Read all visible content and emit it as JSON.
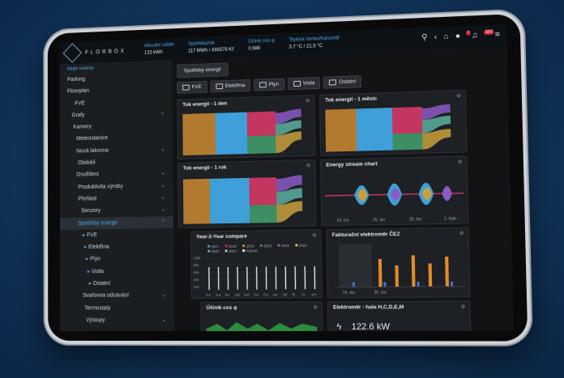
{
  "app": {
    "logo_text": "FLORBOX"
  },
  "header": {
    "metrics": [
      {
        "label": "Aktuální odběr",
        "value": "123 kWh"
      },
      {
        "label": "Spotřeba/rok",
        "value": "117 MWh / 439379 Kč"
      },
      {
        "label": "Účiník cos φ",
        "value": "0.988"
      },
      {
        "label": "Teplota Venku/Kancelář",
        "value": "3.7 °C / 21.5 °C"
      }
    ],
    "notification_count": "107"
  },
  "sidebar": {
    "section_title": "Moje realmy",
    "items": [
      {
        "label": "Parking",
        "chev": ""
      },
      {
        "label": "Floorplan",
        "chev": ""
      },
      {
        "label": "FVE",
        "chev": ""
      },
      {
        "label": "Grafy",
        "chev": "⌄"
      },
      {
        "label": "Kamery",
        "chev": ""
      },
      {
        "label": "Meteostanice",
        "chev": ""
      },
      {
        "label": "Nová lakovna",
        "chev": "⌄"
      },
      {
        "label": "Období",
        "chev": ""
      },
      {
        "label": "Osvětlení",
        "chev": "⌄"
      },
      {
        "label": "Produktivita výroby",
        "chev": "⌄"
      },
      {
        "label": "Přehled",
        "chev": "⌄"
      },
      {
        "label": "Senzory",
        "chev": "⌄"
      },
      {
        "label": "Spotřeby energií",
        "chev": "⌃"
      },
      {
        "label": "FVE",
        "chev": ""
      },
      {
        "label": "Elektřina",
        "chev": ""
      },
      {
        "label": "Plyn",
        "chev": ""
      },
      {
        "label": "Voda",
        "chev": ""
      },
      {
        "label": "Ostatní",
        "chev": ""
      },
      {
        "label": "Svařovna odsávání",
        "chev": "⌄"
      },
      {
        "label": "Termostaty",
        "chev": ""
      },
      {
        "label": "Výstupy",
        "chev": "⌄"
      }
    ]
  },
  "main": {
    "tab": "Spotřeby energií",
    "chips": [
      "FVE",
      "Elektřina",
      "Plyn",
      "Voda",
      "Ostatní"
    ],
    "panels": {
      "flow_day": "Tok energií - 1 den",
      "flow_month": "Tok energií - 1 měsíc",
      "flow_year": "Tok energií - 1 rok",
      "stream": "Energy stream chart",
      "y2y": "Year-2-Year compare",
      "meter": "Fakturační elektroměr ČEZ",
      "cos": "Účiník cos φ",
      "hall": "Elektroměr - hala H,C,D,E,M",
      "hall_value": "122.6 kW"
    }
  },
  "chart_data": [
    {
      "type": "area",
      "title": "Energy stream chart",
      "x_tick_labels": [
        "24. Iso",
        "25. Iso",
        "26. Iso",
        "1. Iiste"
      ]
    },
    {
      "type": "line",
      "title": "Year-2-Year compare",
      "categories": [
        "led",
        "úno",
        "bře",
        "dub",
        "kvě",
        "čvn",
        "čvc",
        "srp",
        "zář",
        "říj",
        "lis",
        "pro"
      ],
      "legend": [
        "2017",
        "2018",
        "2019",
        "2020",
        "2021",
        "2022",
        "2023",
        "2024",
        "Průměr"
      ],
      "y_tick_labels": [
        "100k",
        "80k",
        "60k",
        "40k",
        "20k"
      ]
    },
    {
      "type": "bar",
      "title": "Fakturační elektroměr ČEZ",
      "x_tick_labels": [
        "24. Iso",
        "25. Iso"
      ]
    }
  ],
  "colors": {
    "accent": "#4aa9e6",
    "sidebar_bg": "#1b1e21",
    "panel_bg": "#1d2024"
  }
}
